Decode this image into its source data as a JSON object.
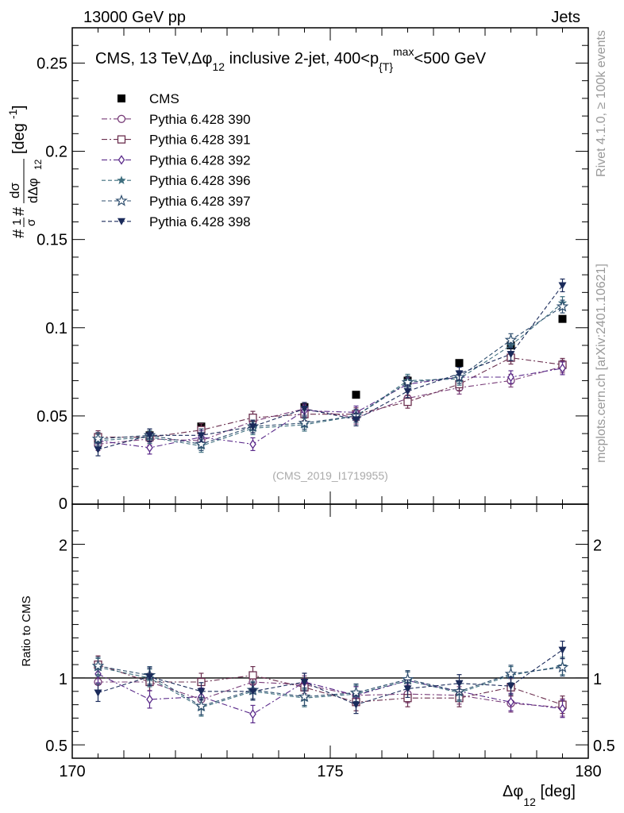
{
  "header": {
    "energy_label": "13000 GeV pp",
    "process_label": "Jets"
  },
  "side_labels": {
    "rivet": "Rivet 4.1.0, ≥ 100k events",
    "mcplots": "mcplots.cern.ch [arXiv:2401.10621]"
  },
  "colors": {
    "cms": "#000000",
    "p390": "#7a3f7a",
    "p391": "#6b2f4f",
    "p392": "#5a2a8a",
    "p396": "#3f6f7f",
    "p397": "#2f4f6f",
    "p398": "#1a2a5a"
  },
  "chart_data": [
    {
      "type": "scatter",
      "panel": "main",
      "title": "CMS, 13 TeV,Δφ12 inclusive 2-jet, 400<p{T}max<500 GeV",
      "title_parts": [
        "CMS, 13 TeV,Δφ",
        "12",
        " inclusive 2-jet, 400<p",
        "{T}",
        "max",
        "<500 GeV"
      ],
      "ylabel_parts": [
        "#",
        "1",
        "σ",
        "#",
        "dσ",
        "dΔφ",
        "12",
        "[deg",
        "-1",
        "]"
      ],
      "watermark": "(CMS_2019_I1719955)",
      "xlim": [
        170,
        180
      ],
      "ylim": [
        0,
        0.27
      ],
      "y_ticks": [
        0.05,
        0.1,
        0.15,
        0.2,
        0.25
      ],
      "y_tick_labels": [
        "0.05",
        "0.1",
        "0.15",
        "0.2",
        "0.25"
      ],
      "y_zero_label": "0",
      "x": [
        170.5,
        171.5,
        172.5,
        173.5,
        174.5,
        175.5,
        176.5,
        177.5,
        178.5,
        179.5
      ],
      "series": [
        {
          "name": "CMS",
          "key": "cms",
          "marker": "square-filled",
          "line": "none",
          "values": [
            0.035,
            0.039,
            0.044,
            0.049,
            0.055,
            0.062,
            0.07,
            0.08,
            0.09,
            0.105
          ]
        },
        {
          "name": "Pythia 6.428 390",
          "key": "p390",
          "marker": "circle-open",
          "line": "dashdot",
          "values": [
            0.034,
            0.037,
            0.036,
            0.047,
            0.054,
            0.049,
            0.06,
            0.066,
            0.07,
            0.078
          ]
        },
        {
          "name": "Pythia 6.428 391",
          "key": "p391",
          "marker": "square-open",
          "line": "dashdot",
          "values": [
            0.038,
            0.038,
            0.042,
            0.049,
            0.051,
            0.051,
            0.058,
            0.068,
            0.083,
            0.079
          ]
        },
        {
          "name": "Pythia 6.428 392",
          "key": "p392",
          "marker": "diamond-open",
          "line": "dashdot",
          "values": [
            0.036,
            0.032,
            0.038,
            0.034,
            0.053,
            0.052,
            0.068,
            0.072,
            0.072,
            0.077
          ]
        },
        {
          "name": "Pythia 6.428 396",
          "key": "p396",
          "marker": "star-filled",
          "line": "dashed",
          "values": [
            0.036,
            0.038,
            0.033,
            0.043,
            0.045,
            0.05,
            0.07,
            0.071,
            0.09,
            0.114
          ]
        },
        {
          "name": "Pythia 6.428 397",
          "key": "p397",
          "marker": "star-open",
          "line": "dashed",
          "values": [
            0.037,
            0.039,
            0.034,
            0.044,
            0.046,
            0.05,
            0.069,
            0.072,
            0.093,
            0.112
          ]
        },
        {
          "name": "Pythia 6.428 398",
          "key": "p398",
          "marker": "triangle-down-filled",
          "line": "dashed",
          "values": [
            0.031,
            0.039,
            0.039,
            0.044,
            0.054,
            0.048,
            0.064,
            0.074,
            0.085,
            0.124
          ]
        }
      ]
    },
    {
      "type": "scatter",
      "panel": "ratio",
      "ylabel": "Ratio to CMS",
      "xlabel_parts": [
        "Δφ",
        "12",
        " [deg]"
      ],
      "xlim": [
        170,
        180
      ],
      "ylim": [
        0.4,
        2.3
      ],
      "reference_line": 1,
      "y_ticks": [
        0.5,
        1,
        2
      ],
      "y_tick_labels": [
        "0.5",
        "1",
        "2"
      ],
      "x_ticks": [
        170,
        175,
        180
      ],
      "x_tick_labels": [
        "170",
        "175",
        "180"
      ],
      "x": [
        170.5,
        171.5,
        172.5,
        173.5,
        174.5,
        175.5,
        176.5,
        177.5,
        178.5,
        179.5
      ],
      "series": [
        {
          "name": "Pythia 6.428 390",
          "key": "p390",
          "values": [
            0.97,
            0.97,
            0.84,
            0.97,
            0.95,
            0.87,
            0.88,
            0.87,
            0.81,
            0.78
          ]
        },
        {
          "name": "Pythia 6.428 391",
          "key": "p391",
          "values": [
            1.1,
            0.97,
            0.97,
            1.02,
            0.93,
            0.82,
            0.85,
            0.85,
            0.93,
            0.8
          ]
        },
        {
          "name": "Pythia 6.428 392",
          "key": "p392",
          "values": [
            1.03,
            0.84,
            0.86,
            0.73,
            0.97,
            0.87,
            0.98,
            0.9,
            0.82,
            0.77
          ]
        },
        {
          "name": "Pythia 6.428 396",
          "key": "p396",
          "values": [
            1.08,
            1.0,
            0.78,
            0.9,
            0.85,
            0.88,
            0.98,
            0.89,
            1.02,
            1.09
          ]
        },
        {
          "name": "Pythia 6.428 397",
          "key": "p397",
          "values": [
            1.09,
            1.02,
            0.79,
            0.91,
            0.86,
            0.89,
            0.99,
            0.9,
            1.03,
            1.08
          ]
        },
        {
          "name": "Pythia 6.428 398",
          "key": "p398",
          "values": [
            0.89,
            1.01,
            0.9,
            0.9,
            0.97,
            0.8,
            0.92,
            0.96,
            0.94,
            1.21
          ]
        }
      ]
    }
  ]
}
